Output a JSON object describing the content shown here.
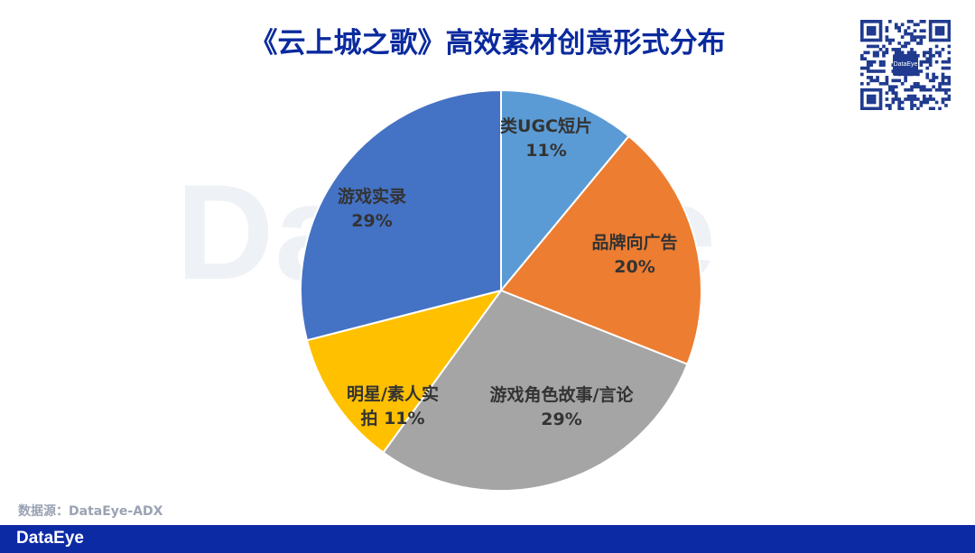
{
  "page": {
    "title": "《云上城之歌》高效素材创意形式分布",
    "watermark": "DataEye",
    "source": "数据源：DataEye-ADX",
    "footer_logo": "DataEye",
    "qr_logo": "DataEye"
  },
  "colors": {
    "title": "#0a2a9e",
    "footer": "#0d2aa5"
  },
  "chart_data": {
    "type": "pie",
    "title": "《云上城之歌》高效素材创意形式分布",
    "start_angle_deg": 0,
    "direction": "clockwise",
    "slices": [
      {
        "label": "类UGC短片",
        "value": 11,
        "display": "11%",
        "color": "#5b9bd5"
      },
      {
        "label": "品牌向广告",
        "value": 20,
        "display": "20%",
        "color": "#ed7d31"
      },
      {
        "label": "游戏角色故事/言论",
        "value": 29,
        "display": "29%",
        "color": "#a5a5a5"
      },
      {
        "label": "明星/素人实拍",
        "value": 11,
        "display": "11%",
        "color": "#ffc000"
      },
      {
        "label": "游戏实录",
        "value": 29,
        "display": "29%",
        "color": "#4472c4"
      }
    ]
  }
}
